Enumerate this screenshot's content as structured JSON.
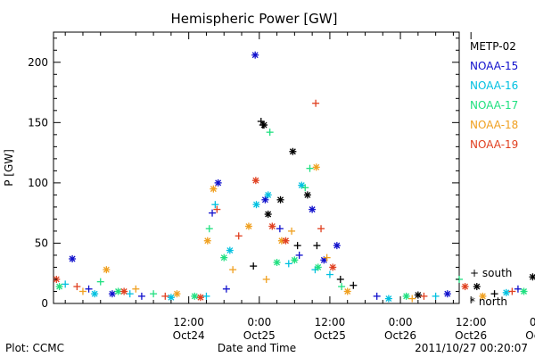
{
  "chart_data": {
    "type": "scatter",
    "title": "Hemispheric Power [GW]",
    "xlabel": "Date and Time",
    "ylabel": "P [GW]",
    "ylim": [
      0,
      225
    ],
    "xlim_hours": [
      -35,
      34
    ],
    "x_ticks": [
      {
        "hour": -12,
        "top": "12:00",
        "bottom": "Oct24"
      },
      {
        "hour": 0,
        "top": "0:00",
        "bottom": "Oct25"
      },
      {
        "hour": 12,
        "top": "12:00",
        "bottom": "Oct25"
      },
      {
        "hour": 24,
        "top": "0:00",
        "bottom": "Oct26"
      },
      {
        "hour": 36,
        "top": "12:00",
        "bottom": "Oct26"
      },
      {
        "hour": 48,
        "top": "0:00",
        "bottom": "Oct27"
      }
    ],
    "y_ticks": [
      0,
      50,
      100,
      150,
      200
    ],
    "marker_legend": {
      "south": "+ south",
      "north": "* north"
    },
    "series": [
      {
        "name": "METP-02",
        "color": "#000000",
        "points": [
          {
            "x": -1.0,
            "y": 31,
            "m": "+"
          },
          {
            "x": 0.3,
            "y": 151,
            "m": "+"
          },
          {
            "x": 0.6,
            "y": 148,
            "m": "+"
          },
          {
            "x": 0.8,
            "y": 148,
            "m": "*"
          },
          {
            "x": 1.5,
            "y": 74,
            "m": "*"
          },
          {
            "x": 3.6,
            "y": 86,
            "m": "*"
          },
          {
            "x": 5.7,
            "y": 126,
            "m": "*"
          },
          {
            "x": 6.5,
            "y": 48,
            "m": "+"
          },
          {
            "x": 8.2,
            "y": 90,
            "m": "*"
          },
          {
            "x": 9.8,
            "y": 48,
            "m": "+"
          },
          {
            "x": 13.8,
            "y": 20,
            "m": "+"
          },
          {
            "x": 16.0,
            "y": 15,
            "m": "+"
          },
          {
            "x": 27.0,
            "y": 7,
            "m": "*"
          },
          {
            "x": 37.0,
            "y": 14,
            "m": "*"
          },
          {
            "x": 40.0,
            "y": 8,
            "m": "+"
          },
          {
            "x": 46.5,
            "y": 22,
            "m": "*"
          }
        ]
      },
      {
        "name": "NOAA-15",
        "color": "#1010cc",
        "points": [
          {
            "x": -31.8,
            "y": 37,
            "m": "*"
          },
          {
            "x": -29.0,
            "y": 12,
            "m": "+"
          },
          {
            "x": -25.0,
            "y": 8,
            "m": "*"
          },
          {
            "x": -20.0,
            "y": 6,
            "m": "+"
          },
          {
            "x": -8.0,
            "y": 75,
            "m": "+"
          },
          {
            "x": -7.0,
            "y": 100,
            "m": "*"
          },
          {
            "x": -5.6,
            "y": 12,
            "m": "+"
          },
          {
            "x": -0.7,
            "y": 206,
            "m": "*"
          },
          {
            "x": 1.0,
            "y": 86,
            "m": "*"
          },
          {
            "x": 3.5,
            "y": 62,
            "m": "+"
          },
          {
            "x": 6.8,
            "y": 40,
            "m": "+"
          },
          {
            "x": 9.0,
            "y": 78,
            "m": "*"
          },
          {
            "x": 11.0,
            "y": 36,
            "m": "*"
          },
          {
            "x": 13.2,
            "y": 48,
            "m": "*"
          },
          {
            "x": 20.0,
            "y": 6,
            "m": "+"
          },
          {
            "x": 32.0,
            "y": 8,
            "m": "*"
          },
          {
            "x": 44.0,
            "y": 12,
            "m": "+"
          },
          {
            "x": 48.0,
            "y": 36,
            "m": "*"
          }
        ]
      },
      {
        "name": "NOAA-16",
        "color": "#00c0e0",
        "points": [
          {
            "x": -33.0,
            "y": 16,
            "m": "+"
          },
          {
            "x": -28.0,
            "y": 8,
            "m": "*"
          },
          {
            "x": -22.0,
            "y": 8,
            "m": "+"
          },
          {
            "x": -15.0,
            "y": 5,
            "m": "*"
          },
          {
            "x": -9.0,
            "y": 6,
            "m": "+"
          },
          {
            "x": -7.5,
            "y": 82,
            "m": "+"
          },
          {
            "x": -5.0,
            "y": 44,
            "m": "*"
          },
          {
            "x": -0.5,
            "y": 82,
            "m": "*"
          },
          {
            "x": 1.5,
            "y": 90,
            "m": "*"
          },
          {
            "x": 5.0,
            "y": 33,
            "m": "+"
          },
          {
            "x": 7.2,
            "y": 98,
            "m": "*"
          },
          {
            "x": 9.5,
            "y": 28,
            "m": "+"
          },
          {
            "x": 12.0,
            "y": 24,
            "m": "+"
          },
          {
            "x": 22.0,
            "y": 4,
            "m": "*"
          },
          {
            "x": 30.0,
            "y": 6,
            "m": "+"
          },
          {
            "x": 42.0,
            "y": 9,
            "m": "*"
          }
        ]
      },
      {
        "name": "NOAA-17",
        "color": "#20e080",
        "points": [
          {
            "x": -34.0,
            "y": 14,
            "m": "*"
          },
          {
            "x": -27.0,
            "y": 18,
            "m": "+"
          },
          {
            "x": -24.0,
            "y": 10,
            "m": "*"
          },
          {
            "x": -18.0,
            "y": 8,
            "m": "+"
          },
          {
            "x": -11.0,
            "y": 6,
            "m": "*"
          },
          {
            "x": -8.5,
            "y": 62,
            "m": "+"
          },
          {
            "x": -6.0,
            "y": 38,
            "m": "*"
          },
          {
            "x": 1.8,
            "y": 142,
            "m": "+"
          },
          {
            "x": 3.0,
            "y": 34,
            "m": "*"
          },
          {
            "x": 6.0,
            "y": 36,
            "m": "*"
          },
          {
            "x": 7.8,
            "y": 96,
            "m": "+"
          },
          {
            "x": 8.6,
            "y": 112,
            "m": "+"
          },
          {
            "x": 10.0,
            "y": 30,
            "m": "*"
          },
          {
            "x": 14.0,
            "y": 14,
            "m": "+"
          },
          {
            "x": 25.0,
            "y": 6,
            "m": "*"
          },
          {
            "x": 34.0,
            "y": 20,
            "m": "+"
          },
          {
            "x": 45.0,
            "y": 10,
            "m": "*"
          }
        ]
      },
      {
        "name": "NOAA-18",
        "color": "#f0a020",
        "points": [
          {
            "x": -30.0,
            "y": 10,
            "m": "+"
          },
          {
            "x": -26.0,
            "y": 28,
            "m": "*"
          },
          {
            "x": -21.0,
            "y": 12,
            "m": "+"
          },
          {
            "x": -14.0,
            "y": 8,
            "m": "*"
          },
          {
            "x": -8.8,
            "y": 52,
            "m": "*"
          },
          {
            "x": -7.8,
            "y": 95,
            "m": "*"
          },
          {
            "x": -4.5,
            "y": 28,
            "m": "+"
          },
          {
            "x": -1.8,
            "y": 64,
            "m": "*"
          },
          {
            "x": 1.2,
            "y": 20,
            "m": "+"
          },
          {
            "x": 3.8,
            "y": 52,
            "m": "*"
          },
          {
            "x": 5.5,
            "y": 60,
            "m": "+"
          },
          {
            "x": 9.7,
            "y": 113,
            "m": "*"
          },
          {
            "x": 11.5,
            "y": 38,
            "m": "+"
          },
          {
            "x": 15.0,
            "y": 10,
            "m": "*"
          },
          {
            "x": 26.0,
            "y": 4,
            "m": "+"
          },
          {
            "x": 38.0,
            "y": 6,
            "m": "*"
          },
          {
            "x": 48.5,
            "y": 6,
            "m": "+"
          }
        ]
      },
      {
        "name": "NOAA-19",
        "color": "#e04020",
        "points": [
          {
            "x": -34.5,
            "y": 20,
            "m": "*"
          },
          {
            "x": -31.0,
            "y": 14,
            "m": "+"
          },
          {
            "x": -23.0,
            "y": 10,
            "m": "*"
          },
          {
            "x": -16.0,
            "y": 6,
            "m": "+"
          },
          {
            "x": -10.0,
            "y": 5,
            "m": "*"
          },
          {
            "x": -7.2,
            "y": 78,
            "m": "+"
          },
          {
            "x": -3.5,
            "y": 56,
            "m": "+"
          },
          {
            "x": -0.6,
            "y": 102,
            "m": "*"
          },
          {
            "x": 2.2,
            "y": 64,
            "m": "*"
          },
          {
            "x": 4.5,
            "y": 52,
            "m": "*"
          },
          {
            "x": 9.6,
            "y": 166,
            "m": "+"
          },
          {
            "x": 10.5,
            "y": 62,
            "m": "+"
          },
          {
            "x": 12.5,
            "y": 30,
            "m": "*"
          },
          {
            "x": 28.0,
            "y": 6,
            "m": "+"
          },
          {
            "x": 35.0,
            "y": 14,
            "m": "*"
          },
          {
            "x": 43.0,
            "y": 10,
            "m": "+"
          }
        ]
      }
    ]
  },
  "footer": {
    "plot_source": "Plot: CCMC",
    "timestamp": "2011/10/27 00:20:07"
  }
}
